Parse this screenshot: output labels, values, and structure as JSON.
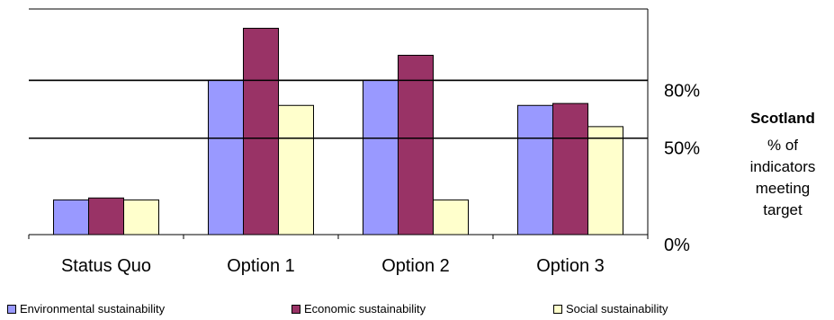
{
  "chart_data": {
    "type": "bar",
    "categories": [
      "Status Quo",
      "Option 1",
      "Option 2",
      "Option 3"
    ],
    "series": [
      {
        "name": "Environmental sustainability",
        "color": "#9999ff",
        "values": [
          18,
          80,
          80,
          67
        ]
      },
      {
        "name": "Economic sustainability",
        "color": "#993366",
        "values": [
          19,
          107,
          93,
          68
        ]
      },
      {
        "name": "Social sustainability",
        "color": "#ffffcc",
        "values": [
          18,
          67,
          18,
          56
        ]
      }
    ],
    "yaxis": {
      "ticks": [
        0,
        50,
        80
      ],
      "tick_labels": [
        "0%",
        "50%",
        "80%"
      ],
      "position": "right",
      "ylim": [
        0,
        117
      ]
    },
    "gridlines": [
      50,
      80
    ],
    "legend_position": "bottom",
    "side_title": {
      "heading": "Scotland",
      "lines": [
        "% of",
        "indicators",
        "meeting",
        "target"
      ]
    }
  }
}
